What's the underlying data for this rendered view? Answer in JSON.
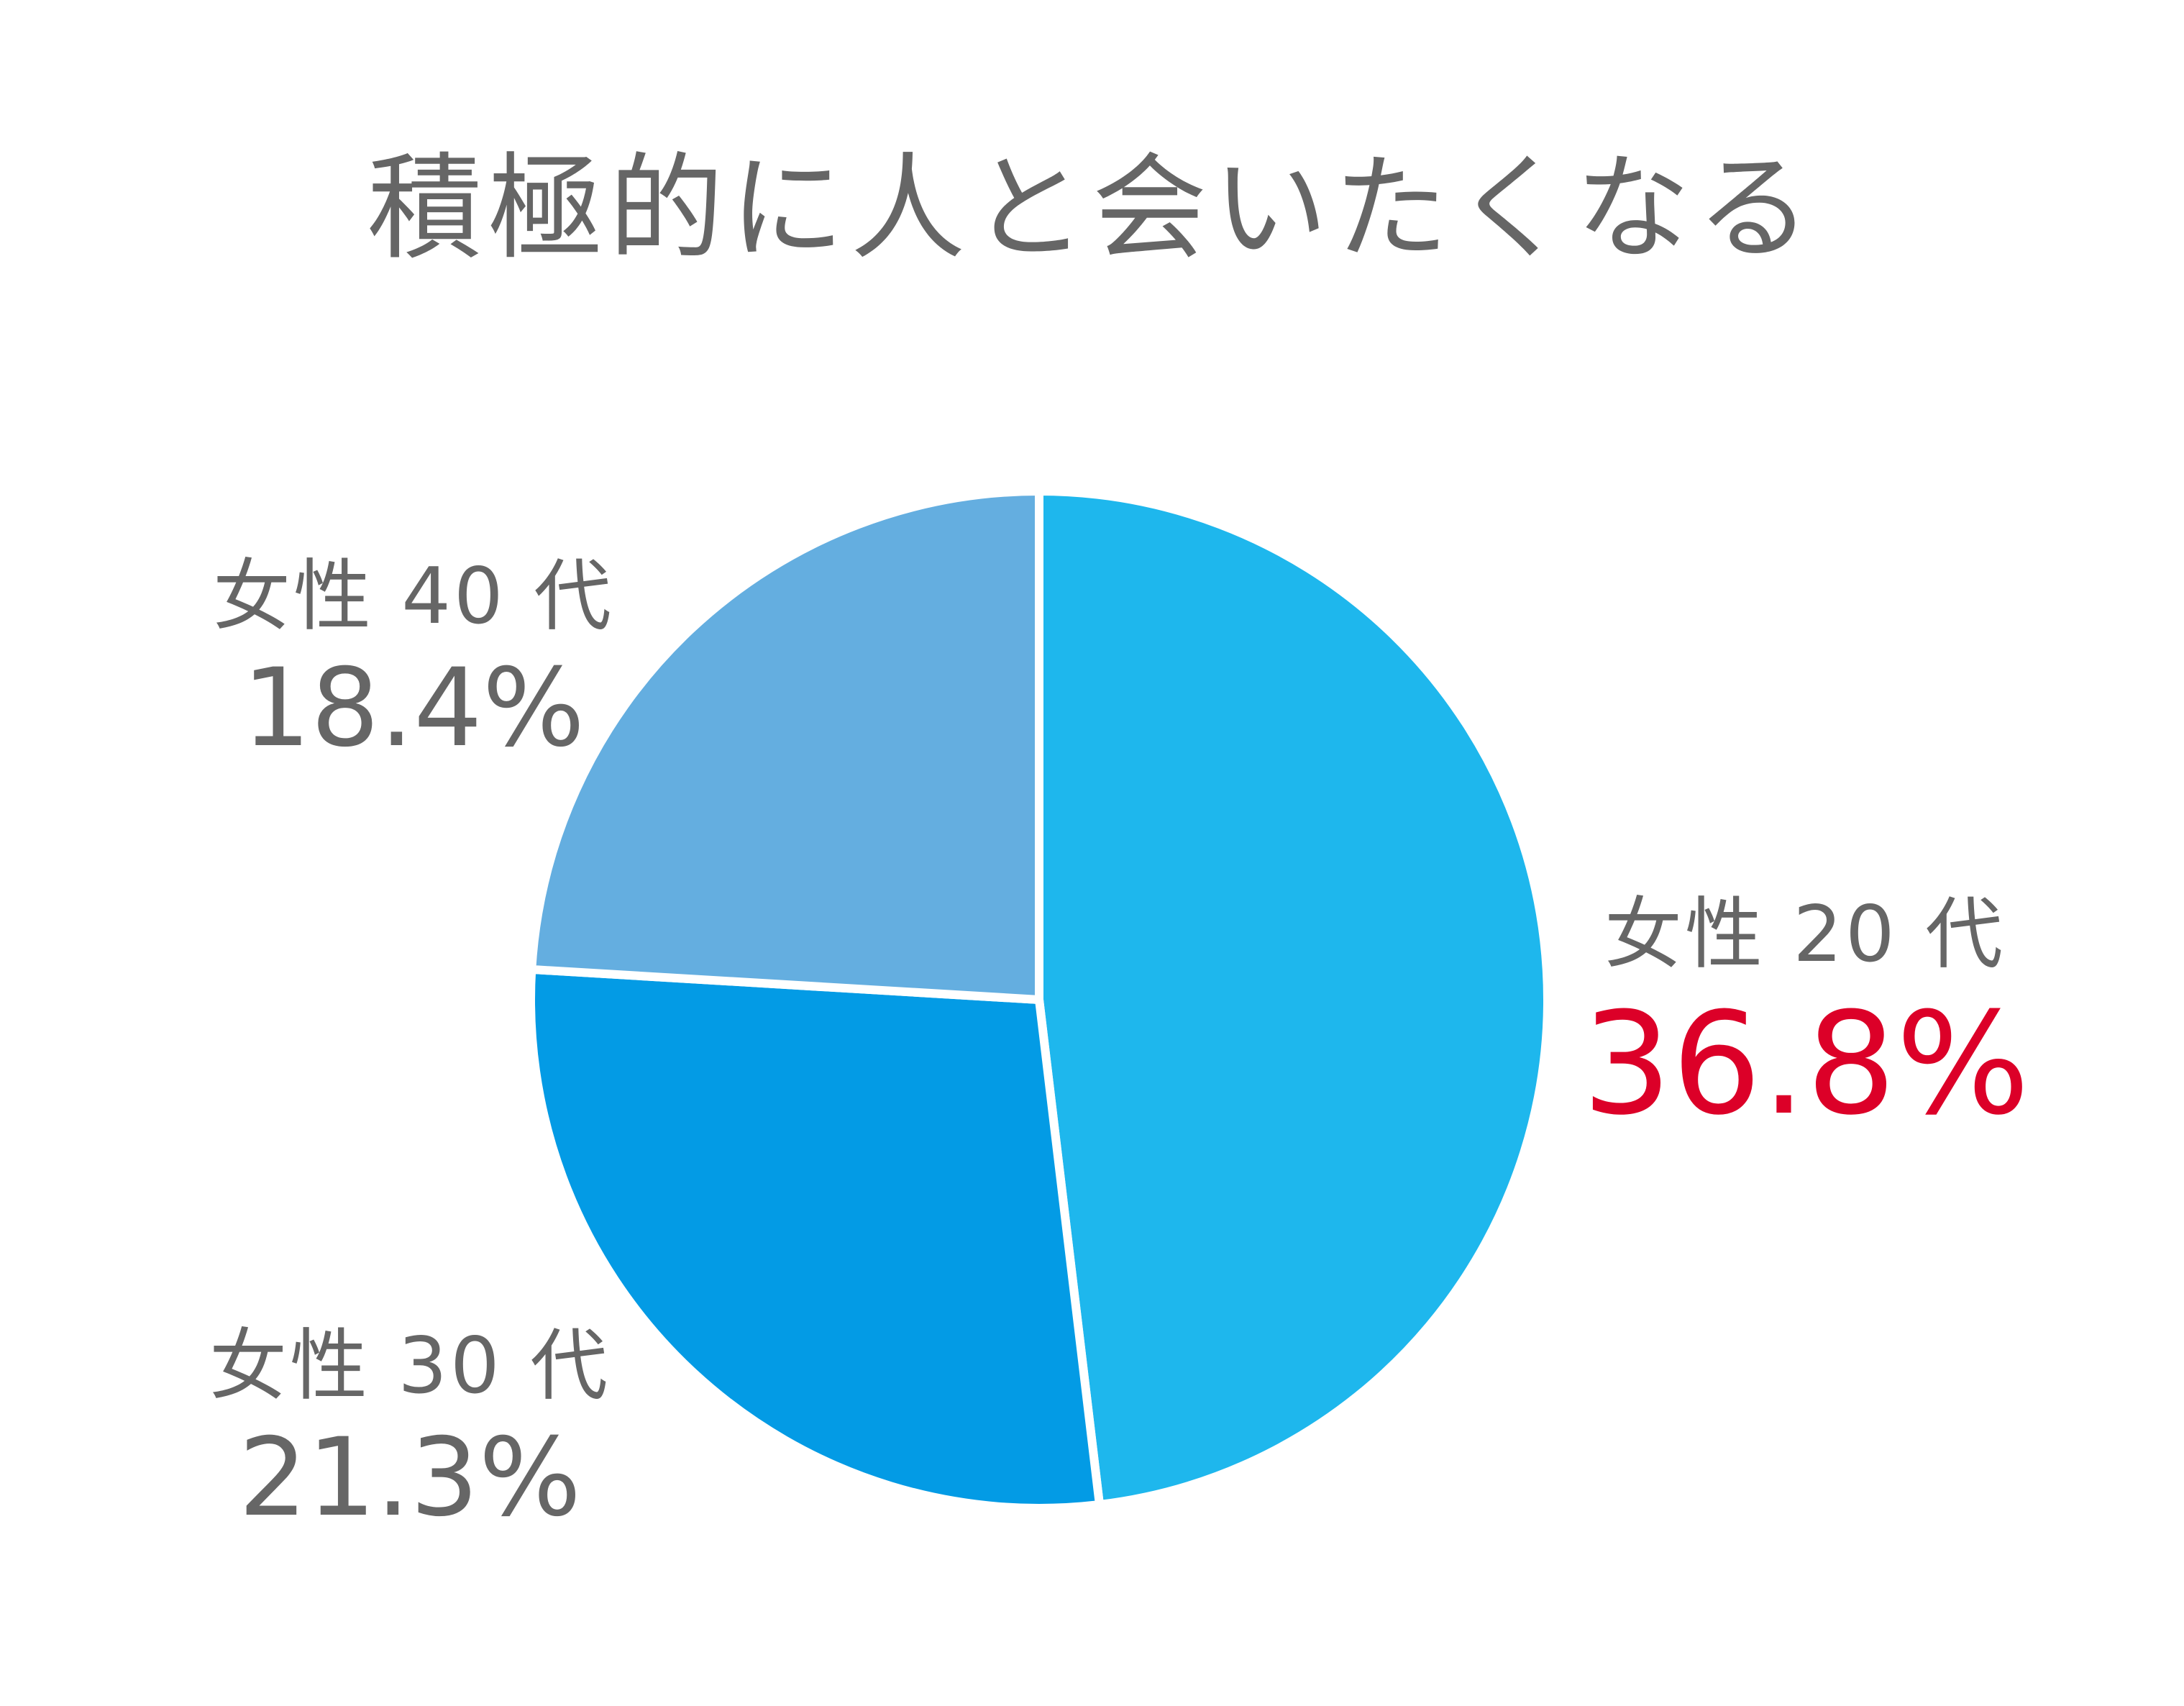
{
  "chart_data": {
    "type": "pie",
    "title": "積極的に人と会いたくなる",
    "categories": [
      "女性 20 代",
      "女性 30 代",
      "女性 40 代"
    ],
    "values": [
      36.8,
      21.3,
      18.4
    ],
    "value_labels": [
      "36.8%",
      "21.3%",
      "18.4%"
    ],
    "colors": [
      "#1eb7ed",
      "#039be5",
      "#64aee0"
    ],
    "start_angle_deg": 0,
    "direction": "clockwise",
    "highlight": {
      "category": "女性 20 代",
      "color": "#dc0028"
    },
    "legend": "none (direct labels)"
  },
  "title": "積極的に人と会いたくなる",
  "labels": {
    "s20": {
      "category": "女性 20 代",
      "value": "36.8%"
    },
    "s30": {
      "category": "女性 30 代",
      "value": "21.3%"
    },
    "s40": {
      "category": "女性 40 代",
      "value": "18.4%"
    }
  }
}
